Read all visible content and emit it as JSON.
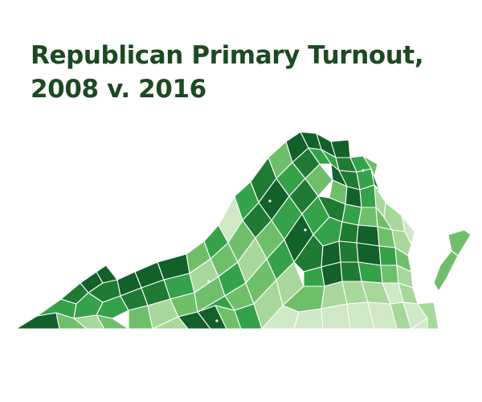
{
  "title": {
    "line1": "Republican Primary Turnout,",
    "line2": "2008 v. 2016"
  },
  "palette": [
    "#cfe8c6",
    "#a8d79b",
    "#6fbf6a",
    "#35a24a",
    "#1f7a33",
    "#12602a"
  ],
  "outline_color": "#ffffff"
}
